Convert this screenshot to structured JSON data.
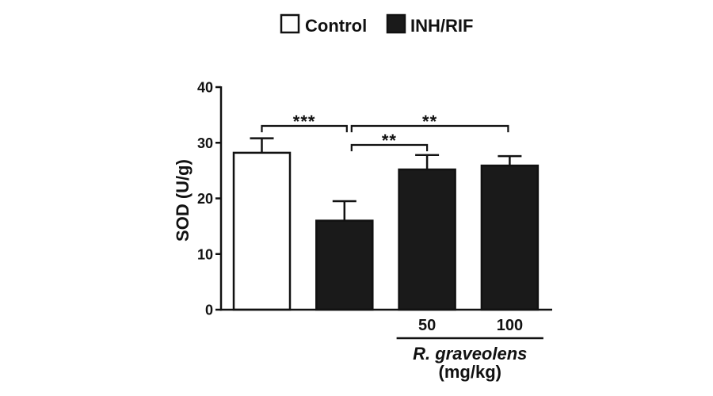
{
  "chart_data": {
    "type": "bar",
    "title": "",
    "xlabel": "",
    "ylabel": "SOD (U/g)",
    "ylim": [
      0,
      40
    ],
    "yticks": [
      0,
      10,
      20,
      30,
      40
    ],
    "grid": false,
    "legend": {
      "placement": "top",
      "items": [
        {
          "name": "Control",
          "color": "#ffffff"
        },
        {
          "name": "INH/RIF",
          "color": "#1a1a1a"
        }
      ]
    },
    "stroke_color": "#111111",
    "categories": [
      "",
      "",
      "50",
      "100"
    ],
    "values": [
      28.2,
      16.0,
      25.2,
      25.9
    ],
    "error_upper": [
      2.6,
      3.5,
      2.6,
      1.7
    ],
    "bar_legend_index": [
      0,
      1,
      1,
      1
    ],
    "significance": [
      {
        "from": 0,
        "to": 1,
        "label": "***"
      },
      {
        "from": 1,
        "to": 3,
        "label": "**"
      },
      {
        "from": 1,
        "to": 2,
        "label": "**"
      }
    ],
    "group_label": {
      "text": "R. graveolens",
      "unit": "(mg/kg)",
      "from": 2,
      "to": 3
    }
  }
}
